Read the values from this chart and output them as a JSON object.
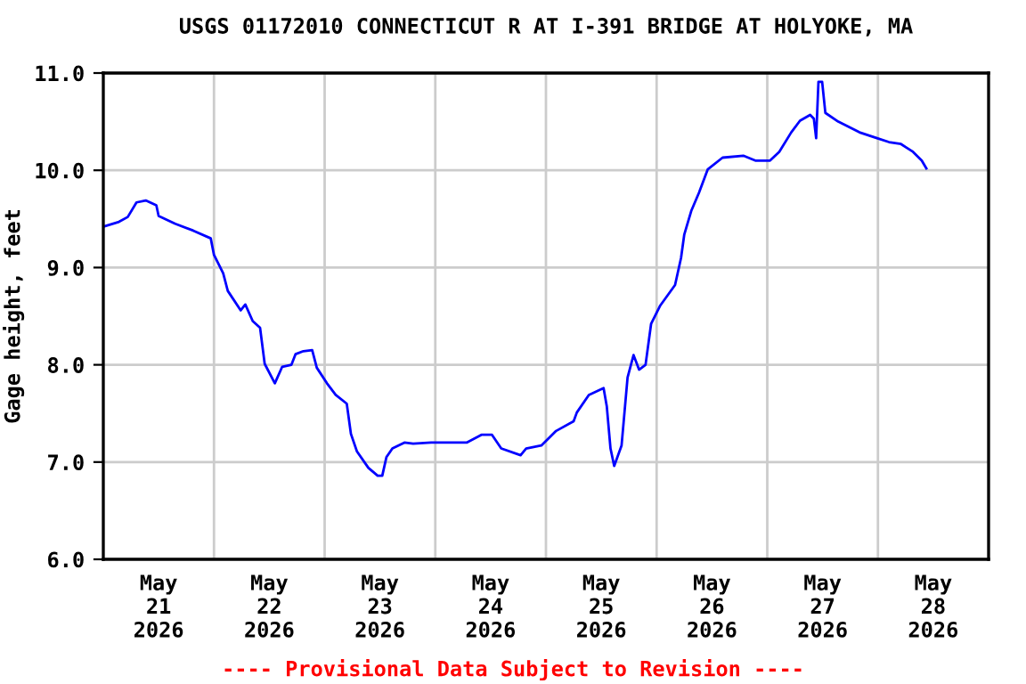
{
  "chart_data": {
    "type": "line",
    "title": "USGS 01172010 CONNECTICUT R AT I-391 BRIDGE AT HOLYOKE, MA",
    "ylabel": "Gage height, feet",
    "x": [
      "2026-05-21T00:00",
      "2026-05-21T03:24",
      "2026-05-21T05:18",
      "2026-05-21T07:12",
      "2026-05-21T09:12",
      "2026-05-21T11:30",
      "2026-05-21T12:00",
      "2026-05-21T15:36",
      "2026-05-21T19:30",
      "2026-05-21T23:18",
      "2026-05-22T00:00",
      "2026-05-22T02:00",
      "2026-05-22T03:00",
      "2026-05-22T05:48",
      "2026-05-22T06:48",
      "2026-05-22T08:24",
      "2026-05-22T10:00",
      "2026-05-22T11:00",
      "2026-05-22T13:12",
      "2026-05-22T14:48",
      "2026-05-22T16:48",
      "2026-05-22T17:42",
      "2026-05-22T19:24",
      "2026-05-22T21:18",
      "2026-05-22T22:18",
      "2026-05-23T00:30",
      "2026-05-23T02:24",
      "2026-05-23T04:48",
      "2026-05-23T05:42",
      "2026-05-23T07:00",
      "2026-05-23T09:30",
      "2026-05-23T11:30",
      "2026-05-23T12:30",
      "2026-05-23T13:24",
      "2026-05-23T14:42",
      "2026-05-23T17:18",
      "2026-05-23T19:12",
      "2026-05-23T23:06",
      "2026-05-24T06:48",
      "2026-05-24T10:00",
      "2026-05-24T12:18",
      "2026-05-24T14:18",
      "2026-05-24T18:30",
      "2026-05-24T19:42",
      "2026-05-24T23:00",
      "2026-05-25T02:12",
      "2026-05-25T06:00",
      "2026-05-25T06:42",
      "2026-05-25T09:18",
      "2026-05-25T12:30",
      "2026-05-25T13:12",
      "2026-05-25T14:00",
      "2026-05-25T14:48",
      "2026-05-25T16:24",
      "2026-05-25T17:42",
      "2026-05-25T19:00",
      "2026-05-25T20:12",
      "2026-05-25T21:36",
      "2026-05-25T22:48",
      "2026-05-26T00:48",
      "2026-05-26T04:00",
      "2026-05-26T05:18",
      "2026-05-26T06:00",
      "2026-05-26T07:30",
      "2026-05-26T09:12",
      "2026-05-26T11:06",
      "2026-05-26T14:18",
      "2026-05-26T18:48",
      "2026-05-26T21:24",
      "2026-05-27T00:36",
      "2026-05-27T02:36",
      "2026-05-27T05:12",
      "2026-05-27T07:06",
      "2026-05-27T09:18",
      "2026-05-27T10:06",
      "2026-05-27T10:36",
      "2026-05-27T11:06",
      "2026-05-27T11:54",
      "2026-05-27T12:36",
      "2026-05-27T15:24",
      "2026-05-27T20:00",
      "2026-05-27T23:48",
      "2026-05-28T02:24",
      "2026-05-28T05:00",
      "2026-05-28T07:36",
      "2026-05-28T09:30",
      "2026-05-28T10:30"
    ],
    "series": [
      {
        "color": "#0000ff",
        "values": [
          9.42,
          9.47,
          9.52,
          9.67,
          9.69,
          9.64,
          9.53,
          9.45,
          9.38,
          9.3,
          9.13,
          8.94,
          8.76,
          8.56,
          8.62,
          8.45,
          8.38,
          8.01,
          7.81,
          7.98,
          8.0,
          8.11,
          8.14,
          8.15,
          7.97,
          7.81,
          7.69,
          7.6,
          7.29,
          7.11,
          6.94,
          6.86,
          6.86,
          7.05,
          7.14,
          7.2,
          7.19,
          7.2,
          7.2,
          7.28,
          7.28,
          7.14,
          7.07,
          7.14,
          7.17,
          7.32,
          7.42,
          7.51,
          7.69,
          7.76,
          7.57,
          7.14,
          6.96,
          7.17,
          7.87,
          8.1,
          7.95,
          8.0,
          8.42,
          8.61,
          8.82,
          9.1,
          9.34,
          9.58,
          9.77,
          10.01,
          10.13,
          10.15,
          10.1,
          10.1,
          10.19,
          10.39,
          10.51,
          10.57,
          10.53,
          10.33,
          10.91,
          10.91,
          10.59,
          10.5,
          10.39,
          10.33,
          10.29,
          10.27,
          10.19,
          10.1,
          10.02
        ]
      }
    ],
    "xlim": [
      "2026-05-21T00:00",
      "2026-05-29T00:00"
    ],
    "xticks": [
      {
        "value": "2026-05-21T12:00",
        "label": "May\n21\n2026"
      },
      {
        "value": "2026-05-22T12:00",
        "label": "May\n22\n2026"
      },
      {
        "value": "2026-05-23T12:00",
        "label": "May\n23\n2026"
      },
      {
        "value": "2026-05-24T12:00",
        "label": "May\n24\n2026"
      },
      {
        "value": "2026-05-25T12:00",
        "label": "May\n25\n2026"
      },
      {
        "value": "2026-05-26T12:00",
        "label": "May\n26\n2026"
      },
      {
        "value": "2026-05-27T12:00",
        "label": "May\n27\n2026"
      },
      {
        "value": "2026-05-28T12:00",
        "label": "May\n28\n2026"
      }
    ],
    "ylim": [
      6.0,
      11.0
    ],
    "yticks": [
      {
        "value": 6.0,
        "label": "6.0"
      },
      {
        "value": 7.0,
        "label": "7.0"
      },
      {
        "value": 8.0,
        "label": "8.0"
      },
      {
        "value": 9.0,
        "label": "9.0"
      },
      {
        "value": 10.0,
        "label": "10.0"
      },
      {
        "value": 11.0,
        "label": "11.0"
      }
    ],
    "grid": true,
    "legend": false,
    "marker": "none",
    "line_style": "solid",
    "annotations": [
      "---- Provisional Data Subject to Revision ----"
    ]
  }
}
